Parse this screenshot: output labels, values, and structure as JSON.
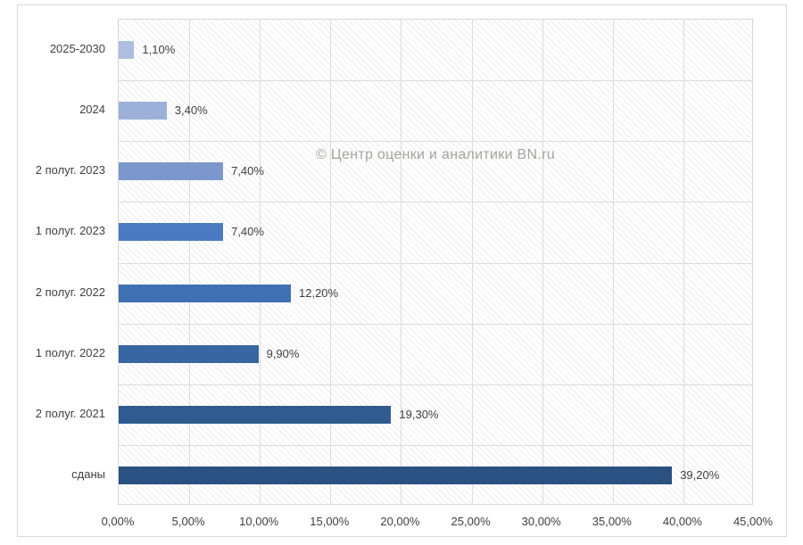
{
  "chart_data": {
    "type": "bar",
    "orientation": "horizontal",
    "title": "",
    "watermark": "© Центр оценки и аналитики BN.ru",
    "categories": [
      "2025-2030",
      "2024",
      "2 полуг. 2023",
      "1 полуг. 2023",
      "2 полуг. 2022",
      "1 полуг. 2022",
      "2 полуг. 2021",
      "сданы"
    ],
    "values": [
      1.1,
      3.4,
      7.4,
      7.4,
      12.2,
      9.9,
      19.3,
      39.2
    ],
    "value_labels": [
      "1,10%",
      "3,40%",
      "7,40%",
      "7,40%",
      "12,20%",
      "9,90%",
      "19,30%",
      "39,20%"
    ],
    "bar_colors": [
      "#aebde0",
      "#9db0d8",
      "#7b97cc",
      "#4a7ac0",
      "#3f70b1",
      "#3766a3",
      "#2f5b91",
      "#2a5181"
    ],
    "xlabel": "",
    "ylabel": "",
    "xlim": [
      0,
      45
    ],
    "xtick_step": 5,
    "xtick_labels": [
      "0,00%",
      "5,00%",
      "10,00%",
      "15,00%",
      "20,00%",
      "25,00%",
      "30,00%",
      "35,00%",
      "40,00%",
      "45,00%"
    ],
    "grid": true,
    "plot_background_pattern": "light-downward-diagonal-hatch",
    "legend": "none",
    "colors": {
      "gridline": "#dcdcdc",
      "plot_border": "#d6d6d6",
      "frame_border": "#d9d9d9",
      "text": "#404040",
      "watermark_text": "#a7a3a0",
      "background": "#ffffff"
    }
  }
}
